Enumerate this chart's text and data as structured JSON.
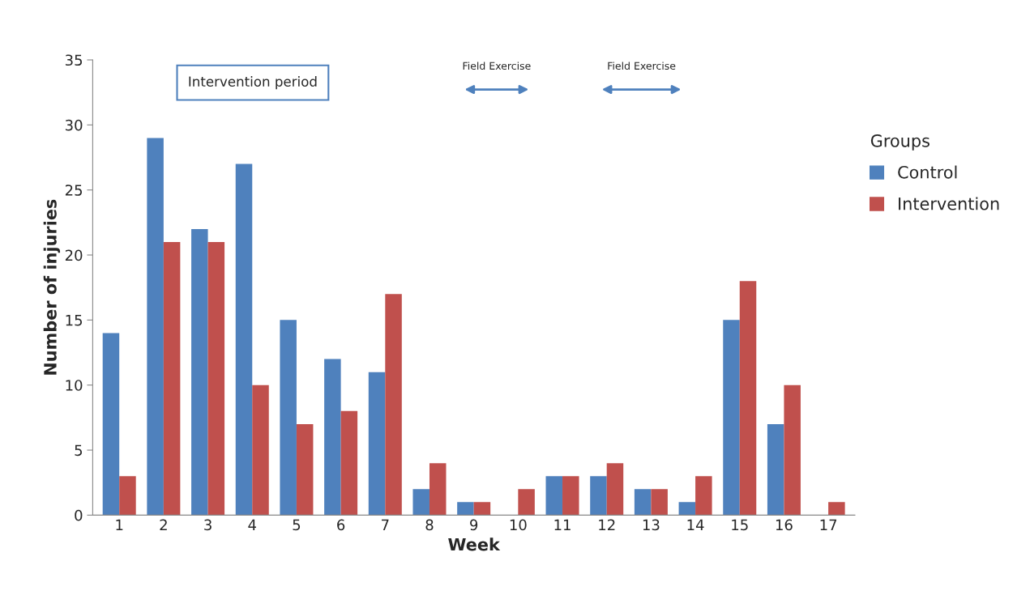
{
  "chart_data": {
    "type": "bar",
    "xlabel": "Week",
    "ylabel": "Number of injuries",
    "legend_title": "Groups",
    "categories": [
      "1",
      "2",
      "3",
      "4",
      "5",
      "6",
      "7",
      "8",
      "9",
      "10",
      "11",
      "12",
      "13",
      "14",
      "15",
      "16",
      "17"
    ],
    "series": [
      {
        "name": "Control",
        "color": "#4f81bd",
        "values": [
          14,
          29,
          22,
          27,
          15,
          12,
          11,
          2,
          1,
          null,
          3,
          3,
          2,
          1,
          15,
          7,
          null
        ]
      },
      {
        "name": "Intervention",
        "color": "#c0504d",
        "values": [
          3,
          21,
          21,
          10,
          7,
          8,
          17,
          4,
          1,
          2,
          3,
          4,
          2,
          3,
          18,
          10,
          1
        ]
      }
    ],
    "ylim": [
      0,
      35
    ],
    "yticks": [
      0,
      5,
      10,
      15,
      20,
      25,
      30,
      35
    ],
    "grid": false,
    "legend": "right",
    "annotations": [
      "Intervention period",
      "Field Exercise",
      "Field Exercise"
    ]
  }
}
